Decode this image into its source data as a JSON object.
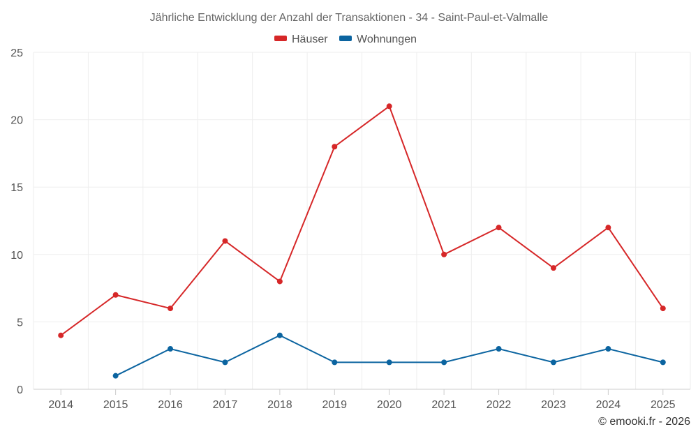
{
  "chart_data": {
    "type": "line",
    "title": "Jährliche Entwicklung der Anzahl der Transaktionen - 34 - Saint-Paul-et-Valmalle",
    "categories": [
      "2014",
      "2015",
      "2016",
      "2017",
      "2018",
      "2019",
      "2020",
      "2021",
      "2022",
      "2023",
      "2024",
      "2025"
    ],
    "series": [
      {
        "name": "Häuser",
        "color": "#d62728",
        "values": [
          4,
          7,
          6,
          11,
          8,
          18,
          21,
          10,
          12,
          9,
          12,
          6
        ]
      },
      {
        "name": "Wohnungen",
        "color": "#0b64a0",
        "values": [
          null,
          1,
          3,
          2,
          4,
          2,
          2,
          2,
          3,
          2,
          3,
          2
        ]
      }
    ],
    "yticks": [
      "0",
      "5",
      "10",
      "15",
      "20",
      "25"
    ],
    "ylim": [
      0,
      25
    ],
    "xlabel": "",
    "ylabel": "",
    "grid": true,
    "legend_position": "top-center"
  },
  "credit": "© emooki.fr - 2026"
}
